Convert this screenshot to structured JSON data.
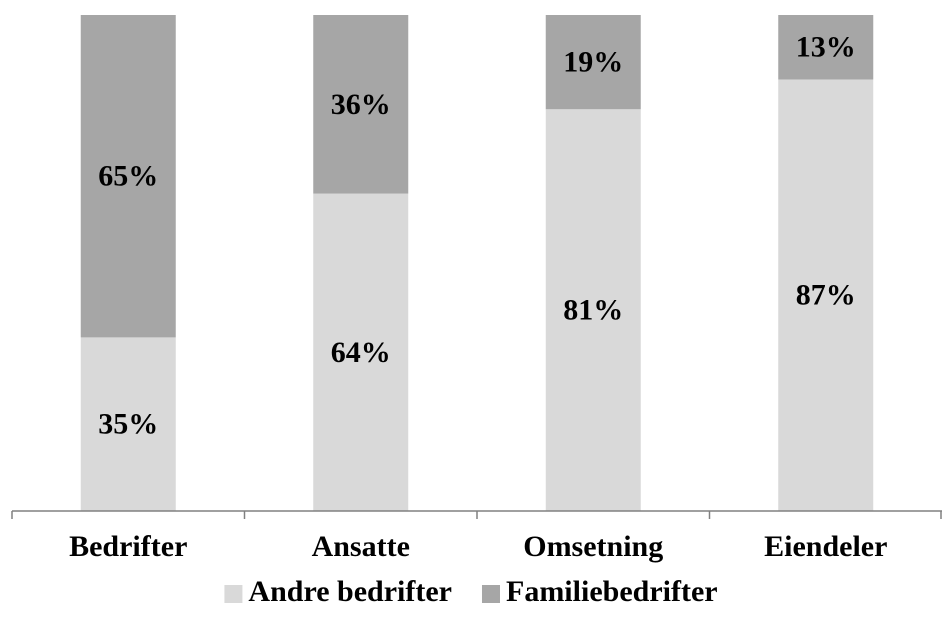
{
  "chart_data": {
    "type": "bar",
    "stacked": true,
    "percent_stacked": true,
    "categories": [
      "Bedrifter",
      "Ansatte",
      "Omsetning",
      "Eiendeler"
    ],
    "series": [
      {
        "name": "Andre bedrifter",
        "values": [
          35,
          64,
          81,
          87
        ],
        "labels": [
          "35%",
          "64%",
          "81%",
          "87%"
        ],
        "color": "#d9d9d9"
      },
      {
        "name": "Familiebedrifter",
        "values": [
          65,
          36,
          19,
          13
        ],
        "labels": [
          "65%",
          "36%",
          "19%",
          "13%"
        ],
        "color": "#a6a6a6"
      }
    ],
    "ylim": [
      0,
      100
    ],
    "grid": false,
    "legend": "bottom",
    "title": "",
    "xlabel": "",
    "ylabel": ""
  }
}
